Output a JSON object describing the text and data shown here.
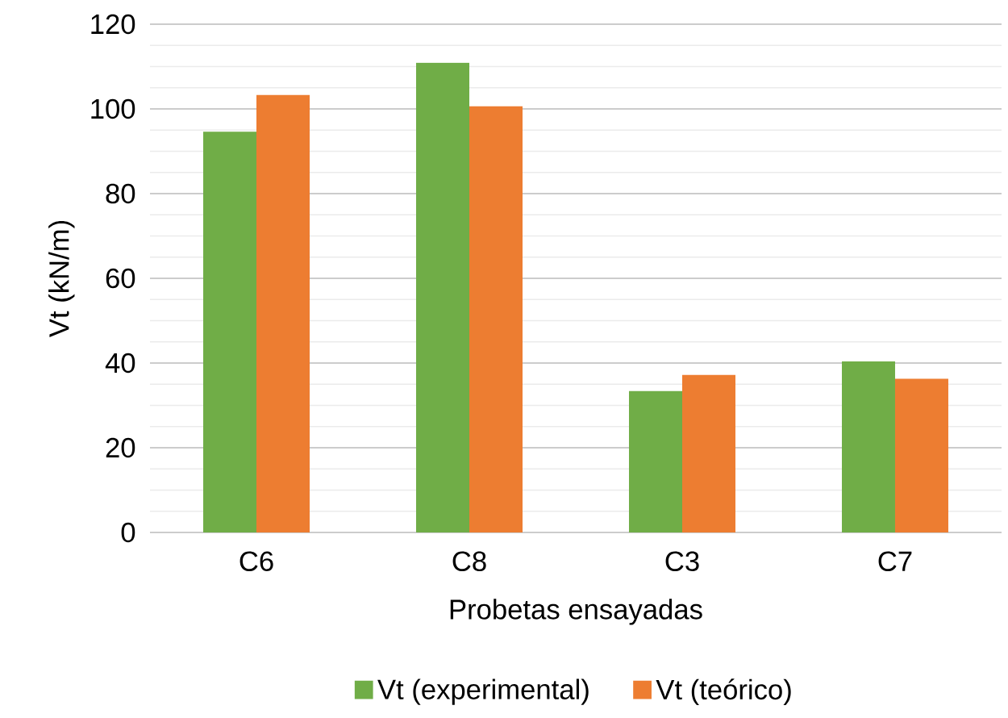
{
  "chart_data": {
    "type": "bar",
    "xlabel": "Probetas ensayadas",
    "ylabel": "Vt (kN/m)",
    "categories": [
      "C6",
      "C8",
      "C3",
      "C7"
    ],
    "series": [
      {
        "name": "Vt (experimental)",
        "color": "#70ad47",
        "values": [
          94.6,
          110.9,
          33.4,
          40.4
        ]
      },
      {
        "name": "Vt (teórico)",
        "color": "#ed7d31",
        "values": [
          103.3,
          100.6,
          37.2,
          36.3
        ]
      }
    ],
    "ylim": [
      0,
      120
    ],
    "yticks": [
      0,
      20,
      40,
      60,
      80,
      100,
      120
    ],
    "grid": "y",
    "legend": "bottom"
  }
}
